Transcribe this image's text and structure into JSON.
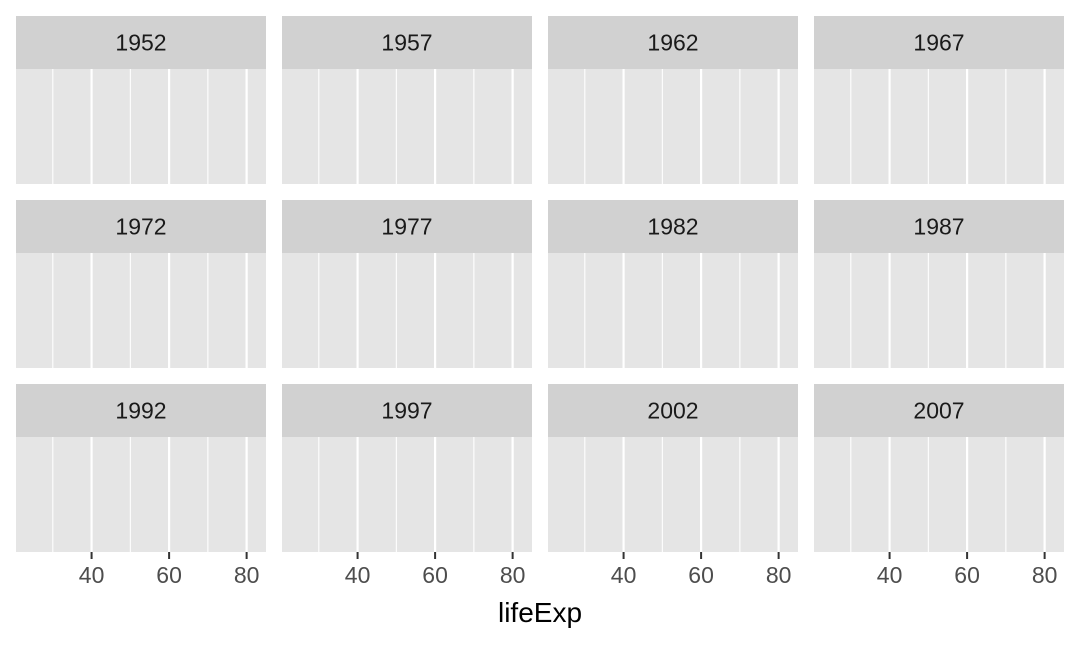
{
  "chart_data": {
    "type": "histogram",
    "facet_variable": "year",
    "facets": [
      "1952",
      "1957",
      "1962",
      "1967",
      "1972",
      "1977",
      "1982",
      "1987",
      "1992",
      "1997",
      "2002",
      "2007"
    ],
    "facet_layout": {
      "rows": 3,
      "cols": 4
    },
    "xlabel": "lifeExp",
    "ylabel": "",
    "xlim": [
      20.5,
      85
    ],
    "x_ticks": [
      40,
      60,
      80
    ],
    "x_minor_ticks": [
      30,
      50,
      70
    ],
    "values": [],
    "grid": true,
    "y_axis_visible": false
  },
  "colors": {
    "panel_background": "#e5e5e5",
    "strip_background": "#d1d1d1",
    "grid_line": "#ffffff"
  }
}
